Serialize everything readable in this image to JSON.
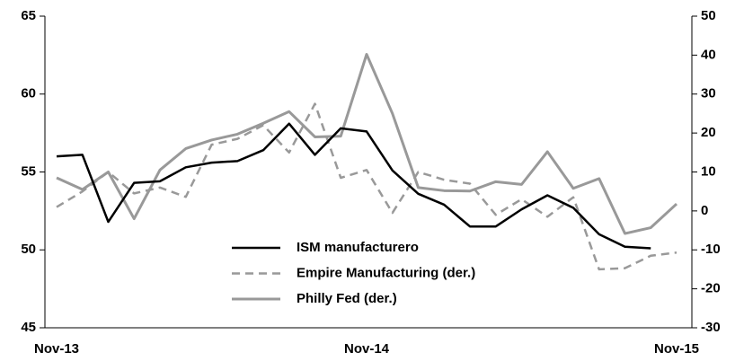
{
  "chart_data": {
    "type": "line",
    "categories": [
      "Nov-13",
      null,
      null,
      null,
      null,
      null,
      null,
      null,
      null,
      null,
      null,
      null,
      "Nov-14",
      null,
      null,
      null,
      null,
      null,
      null,
      null,
      null,
      null,
      null,
      null,
      "Nov-15"
    ],
    "ylim": [
      45,
      65
    ],
    "yticks": [
      45,
      50,
      55,
      60,
      65
    ],
    "y2lim": [
      -30,
      50
    ],
    "y2ticks": [
      -30,
      -20,
      -10,
      0,
      10,
      20,
      30,
      40,
      50
    ],
    "series": [
      {
        "name": "ISM manufacturero",
        "color": "#000000",
        "dash": false,
        "axis": "y",
        "values": [
          56.0,
          56.1,
          51.8,
          54.3,
          54.4,
          55.3,
          55.6,
          55.7,
          56.4,
          58.1,
          56.1,
          57.8,
          57.6,
          55.1,
          53.6,
          52.9,
          51.5,
          51.5,
          52.6,
          53.5,
          52.7,
          51.0,
          50.2,
          50.1,
          null
        ]
      },
      {
        "name": "Empire Manufacturing (der.)",
        "color": "#999999",
        "dash": true,
        "axis": "y2",
        "values": [
          1,
          5,
          10,
          4.5,
          6,
          3.6,
          17,
          18.5,
          22,
          15,
          27.5,
          8.5,
          10.5,
          -0.5,
          10,
          8,
          7,
          -1,
          3,
          -1.5,
          3.5,
          -15,
          -14.7,
          -11.5,
          -10.7
        ]
      },
      {
        "name": "Philly Fed (der.)",
        "color": "#999999",
        "dash": false,
        "axis": "y2",
        "values": [
          8.5,
          5.5,
          10,
          -2,
          10.5,
          16,
          18.2,
          19.7,
          22.5,
          25.5,
          19,
          19.2,
          40.2,
          25,
          6,
          5.2,
          5.1,
          7.5,
          6.8,
          15.2,
          5.8,
          8.3,
          -5.8,
          -4.3,
          1.8
        ]
      }
    ]
  }
}
